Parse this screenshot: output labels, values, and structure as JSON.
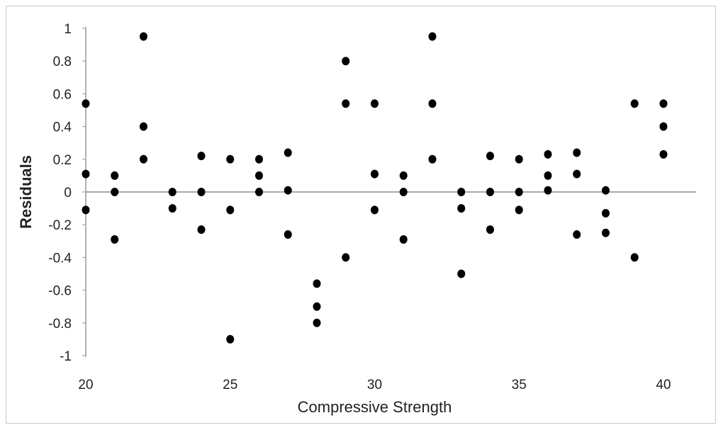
{
  "chart_data": {
    "type": "scatter",
    "title": "",
    "xlabel": "Compressive Strength",
    "ylabel": "Residuals",
    "xlim": [
      20,
      40
    ],
    "ylim": [
      -1,
      1
    ],
    "x_ticks": [
      "20",
      "25",
      "30",
      "35",
      "40"
    ],
    "y_ticks": [
      "1",
      "0.8",
      "0.6",
      "0.4",
      "0.2",
      "0",
      "-0.2",
      "-0.4",
      "-0.6",
      "-0.8",
      "-1"
    ],
    "grid": false,
    "zero_line": true,
    "colors": {
      "points": "#000000",
      "axis": "#999999",
      "zero_line": "#aaaaaa"
    },
    "series": [
      {
        "points": [
          [
            20,
            0.54
          ],
          [
            20,
            0.11
          ],
          [
            20,
            -0.11
          ],
          [
            21,
            0.1
          ],
          [
            21,
            0.0
          ],
          [
            21,
            -0.29
          ],
          [
            22,
            0.95
          ],
          [
            22,
            0.4
          ],
          [
            22,
            0.2
          ],
          [
            23,
            0.0
          ],
          [
            23,
            -0.1
          ],
          [
            24,
            0.22
          ],
          [
            24,
            0.0
          ],
          [
            24,
            -0.23
          ],
          [
            25,
            0.2
          ],
          [
            25,
            -0.11
          ],
          [
            25,
            -0.9
          ],
          [
            26,
            0.2
          ],
          [
            26,
            0.1
          ],
          [
            26,
            0.0
          ],
          [
            27,
            0.24
          ],
          [
            27,
            0.01
          ],
          [
            27,
            -0.26
          ],
          [
            28,
            -0.56
          ],
          [
            28,
            -0.7
          ],
          [
            28,
            -0.8
          ],
          [
            29,
            0.8
          ],
          [
            29,
            0.54
          ],
          [
            29,
            -0.4
          ],
          [
            30,
            0.54
          ],
          [
            30,
            0.11
          ],
          [
            30,
            -0.11
          ],
          [
            31,
            0.1
          ],
          [
            31,
            0.0
          ],
          [
            31,
            -0.29
          ],
          [
            32,
            0.95
          ],
          [
            32,
            0.54
          ],
          [
            32,
            0.2
          ],
          [
            33,
            0.0
          ],
          [
            33,
            -0.1
          ],
          [
            33,
            -0.5
          ],
          [
            34,
            0.22
          ],
          [
            34,
            0.0
          ],
          [
            34,
            -0.23
          ],
          [
            35,
            0.2
          ],
          [
            35,
            0.0
          ],
          [
            35,
            -0.11
          ],
          [
            36,
            0.23
          ],
          [
            36,
            0.1
          ],
          [
            36,
            0.01
          ],
          [
            37,
            0.24
          ],
          [
            37,
            0.11
          ],
          [
            37,
            -0.26
          ],
          [
            38,
            0.01
          ],
          [
            38,
            -0.13
          ],
          [
            38,
            -0.25
          ],
          [
            39,
            0.54
          ],
          [
            39,
            -0.4
          ],
          [
            40,
            0.54
          ],
          [
            40,
            0.4
          ],
          [
            40,
            0.23
          ]
        ]
      }
    ]
  }
}
